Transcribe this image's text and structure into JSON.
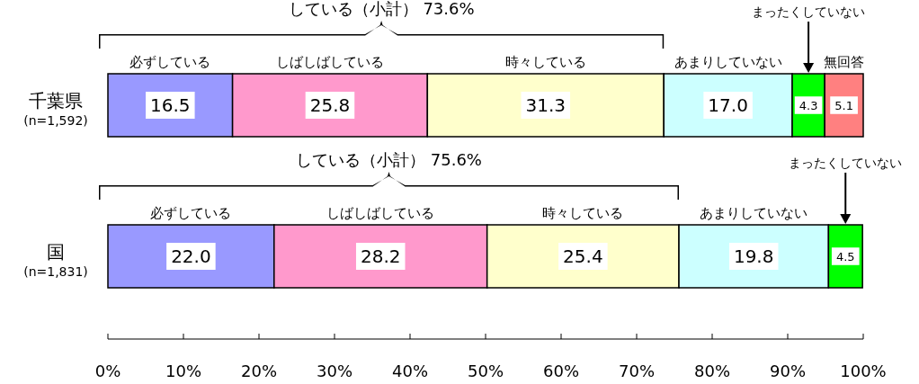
{
  "chart_data": {
    "type": "bar",
    "orientation": "horizontal",
    "stacked": true,
    "categories": [
      "千葉県\n(n=1,592)",
      "国\n(n=1,831)"
    ],
    "series": [
      {
        "name": "必ずしている",
        "color": "#9999ff",
        "values": [
          16.5,
          22.0
        ],
        "value_labels": [
          "16.5",
          "22.0"
        ]
      },
      {
        "name": "しばしばしている",
        "color": "#ff99cc",
        "values": [
          25.8,
          28.2
        ],
        "value_labels": [
          "25.8",
          "28.2"
        ]
      },
      {
        "name": "時々している",
        "color": "#ffffcc",
        "values": [
          31.3,
          25.4
        ],
        "value_labels": [
          "31.3",
          "25.4"
        ]
      },
      {
        "name": "あまりしていない",
        "color": "#ccffff",
        "values": [
          17.0,
          19.8
        ],
        "value_labels": [
          "17.0",
          "19.8"
        ]
      },
      {
        "name": "まったくしていない",
        "color": "#00ff00",
        "values": [
          4.3,
          4.5
        ],
        "value_labels": [
          "4.3",
          "4.5"
        ]
      },
      {
        "name": "無回答",
        "color": "#ff8080",
        "values": [
          5.1,
          null
        ],
        "value_labels": [
          "5.1",
          null
        ]
      }
    ],
    "xlim": [
      0,
      100
    ],
    "xticks": [
      {
        "value": 0,
        "label": "0%"
      },
      {
        "value": 10,
        "label": "10%"
      },
      {
        "value": 20,
        "label": "20%"
      },
      {
        "value": 30,
        "label": "30%"
      },
      {
        "value": 40,
        "label": "40%"
      },
      {
        "value": 50,
        "label": "50%"
      },
      {
        "value": 60,
        "label": "60%"
      },
      {
        "value": 70,
        "label": "70%"
      },
      {
        "value": 80,
        "label": "80%"
      },
      {
        "value": 90,
        "label": "90%"
      },
      {
        "value": 100,
        "label": "100%"
      }
    ],
    "annotations": [
      "している（小計） 73.6%",
      "している（小計） 75.6%"
    ]
  }
}
